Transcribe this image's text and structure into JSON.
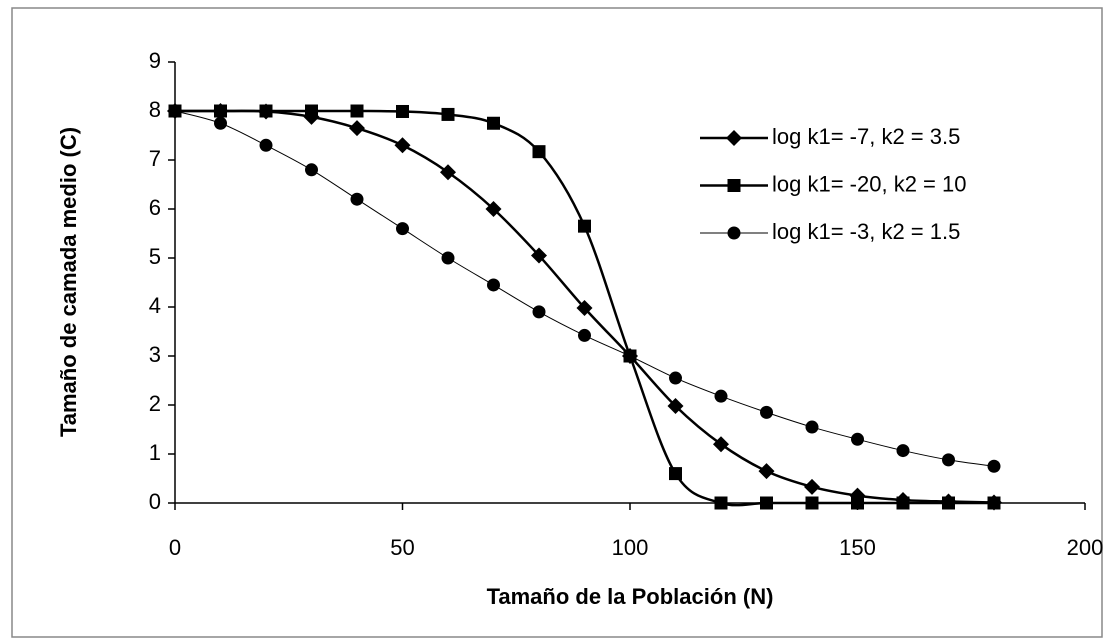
{
  "chart_data": {
    "type": "line",
    "x_label": "Tamaño de la Población (N)",
    "y_label": "Tamaño de camada medio (C)",
    "x": [
      0,
      10,
      20,
      30,
      40,
      50,
      60,
      70,
      80,
      90,
      100,
      110,
      120,
      130,
      140,
      150,
      160,
      170,
      180
    ],
    "series": [
      {
        "name": "log k1= -7, k2 = 3.5",
        "color": "#000000",
        "marker": "diamond",
        "line_width": 2.5,
        "values": [
          8.0,
          8.0,
          7.99,
          7.88,
          7.65,
          7.3,
          6.75,
          6.0,
          5.05,
          3.98,
          3.0,
          1.98,
          1.2,
          0.65,
          0.33,
          0.15,
          0.06,
          0.03,
          0.01
        ]
      },
      {
        "name": "log k1= -20, k2 = 10",
        "color": "#000000",
        "marker": "square",
        "line_width": 2.5,
        "values": [
          8.0,
          8.0,
          8.0,
          8.0,
          8.0,
          7.99,
          7.93,
          7.75,
          7.17,
          5.65,
          3.0,
          0.6,
          0.0,
          0.0,
          0.0,
          0.0,
          0.0,
          0.0,
          0.0
        ]
      },
      {
        "name": "log k1= -3, k2 = 1.5",
        "color": "#000000",
        "marker": "circle",
        "line_width": 1,
        "values": [
          8.0,
          7.75,
          7.3,
          6.8,
          6.2,
          5.6,
          5.0,
          4.45,
          3.9,
          3.42,
          3.0,
          2.55,
          2.18,
          1.85,
          1.55,
          1.3,
          1.07,
          0.88,
          0.75
        ]
      }
    ],
    "xlim": [
      0,
      200
    ],
    "xticks": [
      0,
      50,
      100,
      150,
      200
    ],
    "ylim": [
      0,
      9
    ],
    "yticks": [
      0,
      1,
      2,
      3,
      4,
      5,
      6,
      7,
      8,
      9
    ],
    "smooth": true,
    "legend": "upper right"
  }
}
